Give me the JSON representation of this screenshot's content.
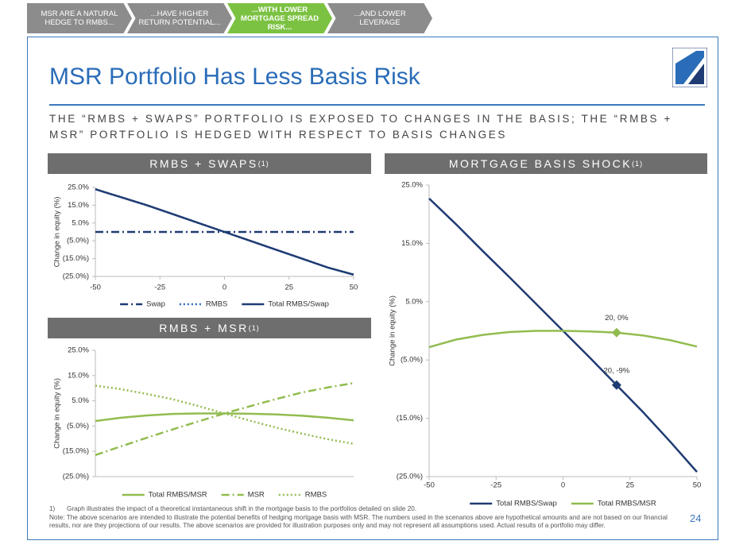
{
  "header": {
    "tabs": [
      "MSR ARE A NATURAL HEDGE TO RMBS...",
      "...HAVE HIGHER RETURN POTENTIAL...",
      "...WITH LOWER MORTGAGE SPREAD RISK...",
      "...AND LOWER LEVERAGE"
    ],
    "active_tab": 2,
    "title": "MSR Portfolio Has Less Basis Risk",
    "subtitle": "THE “RMBS + SWAPS” PORTFOLIO IS EXPOSED TO CHANGES IN THE BASIS; THE “RMBS + MSR” PORTFOLIO IS HEDGED WITH RESPECT TO BASIS CHANGES"
  },
  "chart_data": [
    {
      "type": "line",
      "title": "RMBS + SWAPS",
      "title_superscript": "(1)",
      "y_label": "Change in equity (%)",
      "legend": "bottom",
      "x": [
        -50,
        -40,
        -30,
        -20,
        -10,
        0,
        10,
        20,
        30,
        40,
        50
      ],
      "xlim": [
        -50,
        50
      ],
      "xticks": [
        -50,
        -25,
        0,
        25,
        50
      ],
      "ylim": [
        -25,
        25
      ],
      "yticks": [
        {
          "value": -25,
          "label": "(25.0%)"
        },
        {
          "value": -15,
          "label": "(15.0%)"
        },
        {
          "value": -5,
          "label": "(5.0%)"
        },
        {
          "value": 5,
          "label": "5.0%"
        },
        {
          "value": 15,
          "label": "15.0%"
        },
        {
          "value": 25,
          "label": "25.0%"
        }
      ],
      "series": [
        {
          "name": "Swap",
          "color": "#1f3b73",
          "style": "dash-dot",
          "values": [
            0,
            0,
            0,
            0,
            0,
            0,
            0,
            0,
            0,
            0,
            0
          ]
        },
        {
          "name": "RMBS",
          "color": "#2e6bbf",
          "style": "dotted",
          "values": [
            24,
            19.5,
            15,
            10,
            5,
            0,
            -5,
            -10,
            -15,
            -20,
            -24
          ]
        },
        {
          "name": "Total RMBS/Swap",
          "color": "#1f3b73",
          "style": "solid",
          "values": [
            24,
            19.5,
            15,
            10,
            5,
            0,
            -5,
            -10,
            -15,
            -20,
            -24
          ]
        }
      ]
    },
    {
      "type": "line",
      "title": "RMBS + MSR",
      "title_superscript": "(1)",
      "y_label": "Change in equity (%)",
      "legend": "bottom",
      "x": [
        -50,
        -40,
        -30,
        -20,
        -10,
        0,
        10,
        20,
        30,
        40,
        50
      ],
      "xlim": [
        -50,
        50
      ],
      "ylim": [
        -25,
        25
      ],
      "yticks": [
        {
          "value": -25,
          "label": "(25.0%)"
        },
        {
          "value": -15,
          "label": "(15.0%)"
        },
        {
          "value": -5,
          "label": "(5.0%)"
        },
        {
          "value": 5,
          "label": "5.0%"
        },
        {
          "value": 15,
          "label": "15.0%"
        },
        {
          "value": 25,
          "label": "25.0%"
        }
      ],
      "series": [
        {
          "name": "Total RMBS/MSR",
          "color": "#92bc4f",
          "style": "solid",
          "values": [
            -3,
            -1.7,
            -0.8,
            -0.2,
            0,
            0,
            -0.1,
            -0.4,
            -0.9,
            -1.7,
            -2.7
          ]
        },
        {
          "name": "MSR",
          "color": "#92bc4f",
          "style": "dash-dot",
          "values": [
            -16.5,
            -13,
            -9.6,
            -6.3,
            -3.1,
            0,
            2.9,
            5.7,
            8.3,
            10.3,
            12
          ]
        },
        {
          "name": "RMBS",
          "color": "#92bc4f",
          "style": "dotted",
          "values": [
            11,
            9.6,
            7.7,
            5.6,
            2.9,
            0,
            -2.9,
            -5.6,
            -8,
            -10.2,
            -12
          ]
        }
      ]
    },
    {
      "type": "line",
      "title": "MORTGAGE BASIS SHOCK",
      "title_superscript": "(1)",
      "y_label": "Change in equity (%)",
      "legend": "bottom",
      "x": [
        -50,
        -40,
        -30,
        -20,
        -10,
        0,
        10,
        20,
        30,
        40,
        50
      ],
      "xlim": [
        -50,
        50
      ],
      "xticks": [
        -50,
        -25,
        0,
        25,
        50
      ],
      "ylim": [
        -25,
        25
      ],
      "yticks": [
        {
          "value": -25,
          "label": "(25.0%)"
        },
        {
          "value": -15,
          "label": "(15.0%)"
        },
        {
          "value": -5,
          "label": "(5.0%)"
        },
        {
          "value": 5,
          "label": "5.0%"
        },
        {
          "value": 15,
          "label": "15.0%"
        },
        {
          "value": 25,
          "label": "25.0%"
        }
      ],
      "series": [
        {
          "name": "Total RMBS/Swap",
          "color": "#1f3b73",
          "style": "solid",
          "values": [
            22.7,
            18.3,
            13.7,
            9.2,
            4.6,
            0,
            -4.6,
            -9.3,
            -14,
            -19,
            -24.2
          ],
          "value_labels": [
            null,
            null,
            null,
            null,
            null,
            null,
            null,
            "20, -9%",
            null,
            null,
            null
          ]
        },
        {
          "name": "Total RMBS/MSR",
          "color": "#92bc4f",
          "style": "solid",
          "values": [
            -2.8,
            -1.5,
            -0.7,
            -0.2,
            0,
            0,
            -0.1,
            -0.3,
            -0.8,
            -1.6,
            -2.7
          ],
          "value_labels": [
            null,
            null,
            null,
            null,
            null,
            null,
            null,
            "20, 0%",
            null,
            null,
            null
          ]
        }
      ]
    }
  ],
  "footnotes": [
    {
      "marker": "1)",
      "text": "Graph illustrates the impact of a theoretical instantaneous shift in the mortgage basis to the portfolios detailed on slide 20."
    }
  ],
  "note": "Note: The above scenarios are intended to illustrate the potential benefits of hedging mortgage basis with MSR. The numbers used in the scenarios above are hypothetical amounts and are not based on our financial results, nor are they projections of our results.  The above scenarios are provided for illustration purposes only and may not represent all assumptions used. Actual results of a portfolio may differ.",
  "page_number": "24"
}
